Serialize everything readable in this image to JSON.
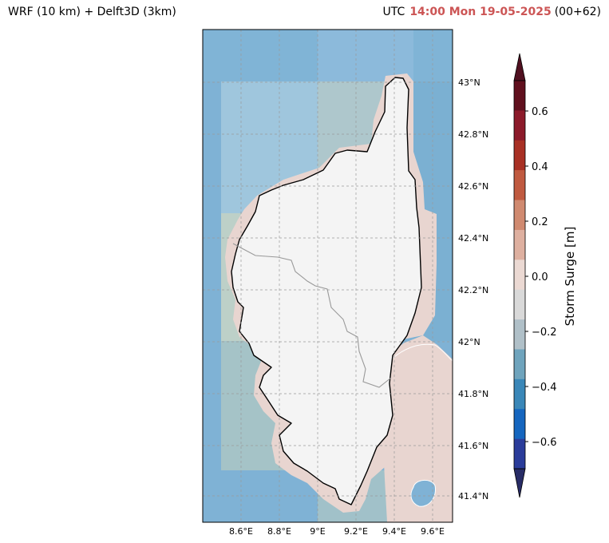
{
  "header": {
    "left_title": "WRF (10 km) + Delft3D (3km)",
    "utc_label": "UTC",
    "timestamp": "14:00 Mon 19-05-2025",
    "lead": "(00+62)"
  },
  "map": {
    "lat_ticks": [
      "43°N",
      "42.8°N",
      "42.6°N",
      "42.4°N",
      "42.2°N",
      "42°N",
      "41.8°N",
      "41.6°N",
      "41.4°N"
    ],
    "lon_ticks": [
      "8.6°E",
      "8.8°E",
      "9°E",
      "9.2°E",
      "9.4°E",
      "9.6°E"
    ],
    "colors": {
      "sea": "#7fb2d5",
      "land": "#f4f4f4",
      "coastal_band": "#e8d5d0",
      "coastline": "#000000",
      "border": "#999999",
      "tile_light": "#9fc6dd",
      "tile_green": "#bdd0c8",
      "tile_teal": "#a5c3c7"
    }
  },
  "colorbar": {
    "title": "Storm Surge [m]",
    "tick_labels": [
      "0.6",
      "0.4",
      "0.2",
      "0.0",
      "−0.2",
      "−0.4",
      "−0.6"
    ],
    "colors_top_to_bottom": [
      "#501020",
      "#60101e",
      "#8c1a2a",
      "#a83024",
      "#c05a40",
      "#d08a70",
      "#deb0a0",
      "#ebd9d3",
      "#d9d9d9",
      "#b0c0c8",
      "#6fa4bd",
      "#3a87b8",
      "#1566bf",
      "#2a3c9a",
      "#282c66"
    ]
  }
}
